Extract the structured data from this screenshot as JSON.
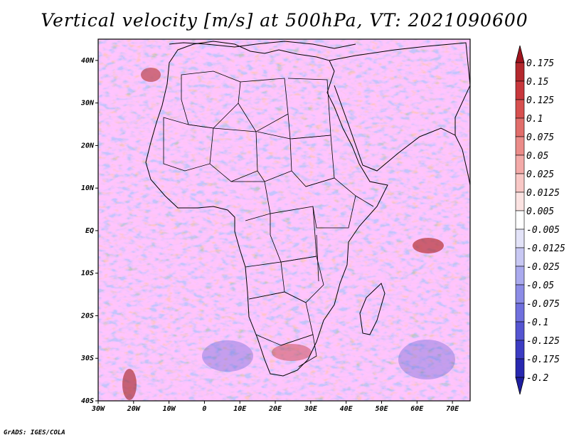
{
  "title": "Vertical velocity [m/s] at 500hPa, VT: 2021090600",
  "footer": "GrADS: IGES/COLA",
  "map": {
    "lon_range": [
      -30,
      75
    ],
    "lat_range": [
      -40,
      45
    ],
    "lat_ticks": [
      {
        "value": 40,
        "label": "40N"
      },
      {
        "value": 30,
        "label": "30N"
      },
      {
        "value": 20,
        "label": "20N"
      },
      {
        "value": 10,
        "label": "10N"
      },
      {
        "value": 0,
        "label": "EQ"
      },
      {
        "value": -10,
        "label": "10S"
      },
      {
        "value": -20,
        "label": "20S"
      },
      {
        "value": -30,
        "label": "30S"
      },
      {
        "value": -40,
        "label": "40S"
      }
    ],
    "lon_ticks": [
      {
        "value": -30,
        "label": "30W"
      },
      {
        "value": -20,
        "label": "20W"
      },
      {
        "value": -10,
        "label": "10W"
      },
      {
        "value": 0,
        "label": "0"
      },
      {
        "value": 10,
        "label": "10E"
      },
      {
        "value": 20,
        "label": "20E"
      },
      {
        "value": 30,
        "label": "30E"
      },
      {
        "value": 40,
        "label": "40E"
      },
      {
        "value": 50,
        "label": "50E"
      },
      {
        "value": 60,
        "label": "60E"
      },
      {
        "value": 70,
        "label": "70E"
      }
    ]
  },
  "colorbar": {
    "levels": [
      {
        "label": "0.175",
        "color": "#a0141e"
      },
      {
        "label": "0.15",
        "color": "#b4282d"
      },
      {
        "label": "0.125",
        "color": "#c8373c"
      },
      {
        "label": "0.1",
        "color": "#d7504f"
      },
      {
        "label": "0.075",
        "color": "#e16e6b"
      },
      {
        "label": "0.05",
        "color": "#eb8c89"
      },
      {
        "label": "0.025",
        "color": "#f3aaa8"
      },
      {
        "label": "0.0125",
        "color": "#f8c8c6"
      },
      {
        "label": "0.005",
        "color": "#fbe3e2"
      },
      {
        "label": "-0.005",
        "color": "#ffffff"
      },
      {
        "label": "-0.0125",
        "color": "#e3e3f8"
      },
      {
        "label": "-0.025",
        "color": "#c8c8f3"
      },
      {
        "label": "-0.05",
        "color": "#aaaaee"
      },
      {
        "label": "-0.075",
        "color": "#8c8ce6"
      },
      {
        "label": "-0.1",
        "color": "#7070de"
      },
      {
        "label": "-0.125",
        "color": "#5555d2"
      },
      {
        "label": "-0.175",
        "color": "#3c3cc3"
      },
      {
        "label": "-0.2",
        "color": "#2828b0"
      }
    ],
    "top_color": "#a0141e",
    "bottom_color": "#1e1ea0"
  }
}
